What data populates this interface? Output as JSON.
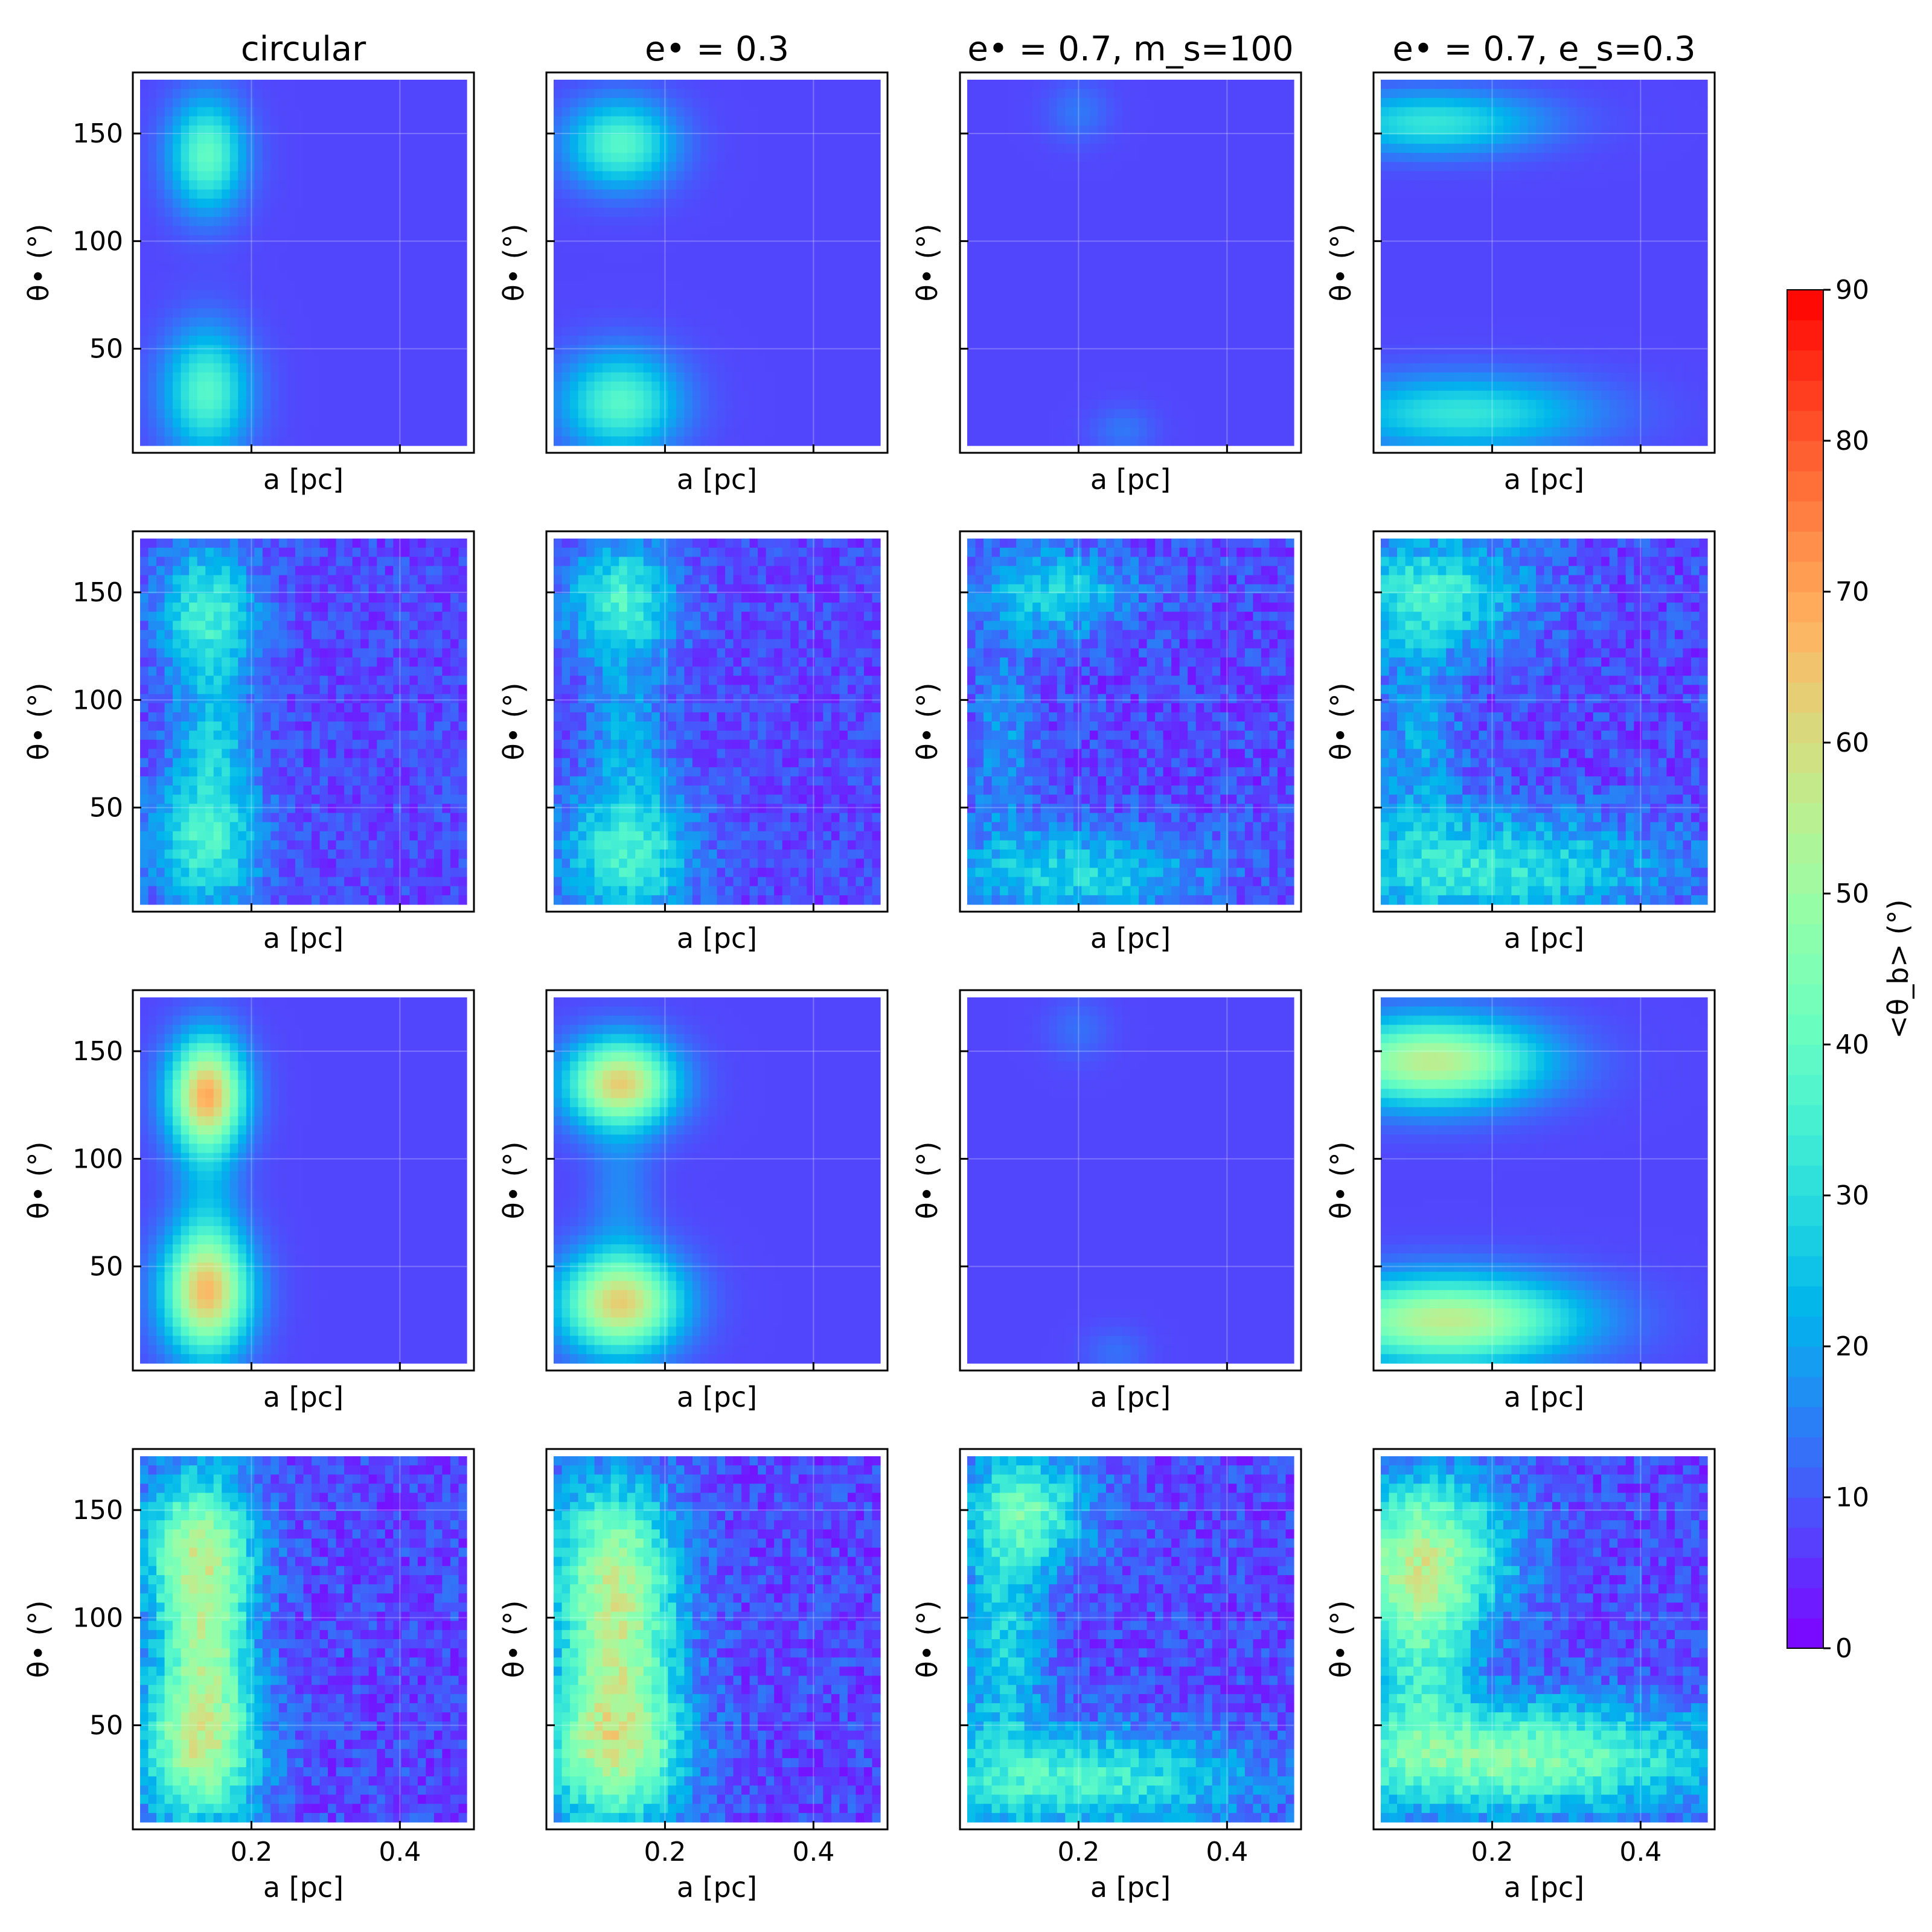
{
  "chart_data": {
    "type": "heatmap",
    "description_columns": [
      "circular",
      "e• = 0.3",
      "e• = 0.7, m_s=100",
      "e• = 0.7, e_s=0.3"
    ],
    "x_label": "a [pc]",
    "y_label": "θ• (°)",
    "x_range": [
      0.05,
      0.49
    ],
    "y_range": [
      5,
      175
    ],
    "x_ticks": [
      0.2,
      0.4
    ],
    "x_tick_labels": [
      "0.2",
      "0.4"
    ],
    "y_ticks": [
      50,
      100,
      150
    ],
    "y_tick_labels": [
      "50",
      "100",
      "150"
    ],
    "colorbar": {
      "label": "<θ_b> (°)",
      "min": 0,
      "max": 90,
      "ticks": [
        0,
        10,
        20,
        30,
        40,
        50,
        60,
        70,
        80,
        90
      ],
      "tick_labels": [
        "0",
        "10",
        "20",
        "30",
        "40",
        "50",
        "60",
        "70",
        "80",
        "90"
      ],
      "colormap": "rainbow"
    },
    "background_level": 8,
    "panels": [
      {
        "row": 0,
        "col": 0,
        "title": "circular",
        "noise": 0,
        "blobs": [
          {
            "a": 0.14,
            "t": 140,
            "amp": 32,
            "sa": 0.035,
            "st": 18
          },
          {
            "a": 0.14,
            "t": 30,
            "amp": 30,
            "sa": 0.04,
            "st": 20
          }
        ]
      },
      {
        "row": 0,
        "col": 1,
        "title": "e• = 0.3",
        "noise": 0,
        "blobs": [
          {
            "a": 0.14,
            "t": 145,
            "amp": 30,
            "sa": 0.05,
            "st": 14
          },
          {
            "a": 0.14,
            "t": 25,
            "amp": 30,
            "sa": 0.055,
            "st": 16
          }
        ]
      },
      {
        "row": 0,
        "col": 2,
        "title": "e• = 0.7, m_s=100",
        "noise": 0,
        "blobs": [
          {
            "a": 0.2,
            "t": 160,
            "amp": 6,
            "sa": 0.03,
            "st": 10
          },
          {
            "a": 0.26,
            "t": 12,
            "amp": 6,
            "sa": 0.03,
            "st": 8
          }
        ]
      },
      {
        "row": 0,
        "col": 3,
        "title": "e• = 0.7, e_s=0.3",
        "noise": 0,
        "blobs": [
          {
            "a": 0.12,
            "t": 155,
            "amp": 24,
            "sa": 0.1,
            "st": 10
          },
          {
            "a": 0.16,
            "t": 20,
            "amp": 24,
            "sa": 0.12,
            "st": 12
          }
        ]
      },
      {
        "row": 1,
        "col": 0,
        "title": "",
        "noise": 5,
        "blobs": [
          {
            "a": 0.14,
            "t": 140,
            "amp": 28,
            "sa": 0.045,
            "st": 22
          },
          {
            "a": 0.14,
            "t": 35,
            "amp": 28,
            "sa": 0.05,
            "st": 24
          },
          {
            "a": 0.15,
            "t": 85,
            "amp": 14,
            "sa": 0.035,
            "st": 20
          }
        ]
      },
      {
        "row": 1,
        "col": 1,
        "title": "",
        "noise": 5,
        "blobs": [
          {
            "a": 0.14,
            "t": 145,
            "amp": 28,
            "sa": 0.05,
            "st": 20
          },
          {
            "a": 0.15,
            "t": 30,
            "amp": 28,
            "sa": 0.06,
            "st": 22
          },
          {
            "a": 0.15,
            "t": 85,
            "amp": 12,
            "sa": 0.035,
            "st": 20
          }
        ]
      },
      {
        "row": 1,
        "col": 2,
        "title": "",
        "noise": 6,
        "blobs": [
          {
            "a": 0.17,
            "t": 150,
            "amp": 20,
            "sa": 0.07,
            "st": 14
          },
          {
            "a": 0.2,
            "t": 20,
            "amp": 20,
            "sa": 0.12,
            "st": 14
          },
          {
            "a": 0.1,
            "t": 80,
            "amp": 10,
            "sa": 0.03,
            "st": 40
          }
        ]
      },
      {
        "row": 1,
        "col": 3,
        "title": "",
        "noise": 6,
        "blobs": [
          {
            "a": 0.12,
            "t": 150,
            "amp": 24,
            "sa": 0.09,
            "st": 18
          },
          {
            "a": 0.2,
            "t": 22,
            "amp": 24,
            "sa": 0.16,
            "st": 18
          },
          {
            "a": 0.1,
            "t": 85,
            "amp": 12,
            "sa": 0.04,
            "st": 40
          }
        ]
      },
      {
        "row": 2,
        "col": 0,
        "title": "",
        "noise": 0,
        "blobs": [
          {
            "a": 0.14,
            "t": 130,
            "amp": 60,
            "sa": 0.035,
            "st": 18
          },
          {
            "a": 0.14,
            "t": 38,
            "amp": 58,
            "sa": 0.04,
            "st": 20
          },
          {
            "a": 0.14,
            "t": 85,
            "amp": 10,
            "sa": 0.03,
            "st": 22
          }
        ]
      },
      {
        "row": 2,
        "col": 1,
        "title": "",
        "noise": 0,
        "blobs": [
          {
            "a": 0.14,
            "t": 135,
            "amp": 55,
            "sa": 0.05,
            "st": 14
          },
          {
            "a": 0.14,
            "t": 33,
            "amp": 55,
            "sa": 0.055,
            "st": 16
          },
          {
            "a": 0.14,
            "t": 85,
            "amp": 8,
            "sa": 0.03,
            "st": 22
          }
        ]
      },
      {
        "row": 2,
        "col": 2,
        "title": "",
        "noise": 0,
        "blobs": [
          {
            "a": 0.2,
            "t": 160,
            "amp": 5,
            "sa": 0.03,
            "st": 10
          },
          {
            "a": 0.25,
            "t": 10,
            "amp": 5,
            "sa": 0.03,
            "st": 8
          }
        ]
      },
      {
        "row": 2,
        "col": 3,
        "title": "",
        "noise": 0,
        "blobs": [
          {
            "a": 0.12,
            "t": 145,
            "amp": 48,
            "sa": 0.1,
            "st": 14
          },
          {
            "a": 0.14,
            "t": 25,
            "amp": 48,
            "sa": 0.12,
            "st": 14
          }
        ]
      },
      {
        "row": 3,
        "col": 0,
        "title": "",
        "noise": 6,
        "blobs": [
          {
            "a": 0.13,
            "t": 130,
            "amp": 46,
            "sa": 0.05,
            "st": 26
          },
          {
            "a": 0.13,
            "t": 40,
            "amp": 46,
            "sa": 0.055,
            "st": 26
          },
          {
            "a": 0.14,
            "t": 85,
            "amp": 24,
            "sa": 0.04,
            "st": 22
          }
        ]
      },
      {
        "row": 3,
        "col": 1,
        "title": "",
        "noise": 6,
        "blobs": [
          {
            "a": 0.13,
            "t": 125,
            "amp": 40,
            "sa": 0.06,
            "st": 28
          },
          {
            "a": 0.13,
            "t": 40,
            "amp": 48,
            "sa": 0.065,
            "st": 26
          },
          {
            "a": 0.14,
            "t": 85,
            "amp": 22,
            "sa": 0.05,
            "st": 22
          }
        ]
      },
      {
        "row": 3,
        "col": 2,
        "title": "",
        "noise": 6,
        "blobs": [
          {
            "a": 0.13,
            "t": 150,
            "amp": 30,
            "sa": 0.06,
            "st": 18
          },
          {
            "a": 0.2,
            "t": 25,
            "amp": 28,
            "sa": 0.16,
            "st": 16
          },
          {
            "a": 0.1,
            "t": 90,
            "amp": 20,
            "sa": 0.04,
            "st": 40
          }
        ]
      },
      {
        "row": 3,
        "col": 3,
        "title": "",
        "noise": 6,
        "blobs": [
          {
            "a": 0.11,
            "t": 130,
            "amp": 40,
            "sa": 0.08,
            "st": 26
          },
          {
            "a": 0.22,
            "t": 35,
            "amp": 38,
            "sa": 0.2,
            "st": 18
          },
          {
            "a": 0.1,
            "t": 85,
            "amp": 22,
            "sa": 0.05,
            "st": 30
          }
        ]
      }
    ]
  }
}
